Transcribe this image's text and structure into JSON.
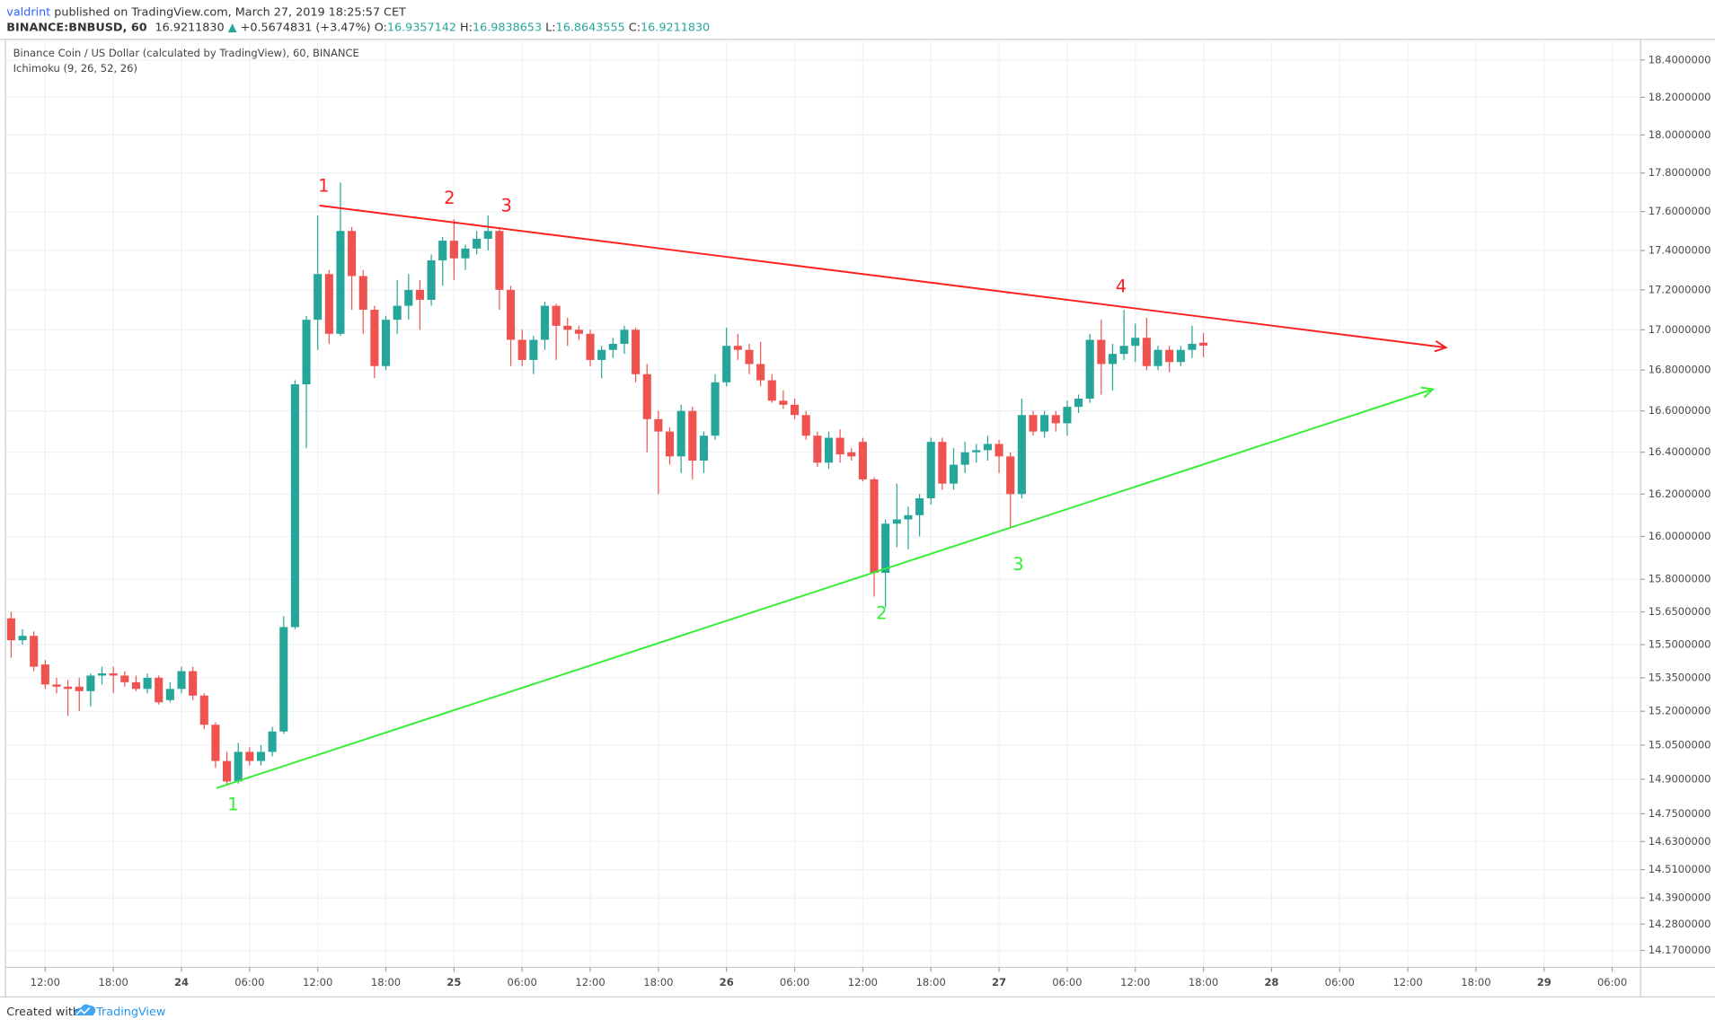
{
  "header": {
    "author": "valdrint",
    "published": "published on TradingView.com, March 27, 2019 18:25:57 CET",
    "symbol": "BINANCE:BNBUSD, 60",
    "last": "16.9211830",
    "arrow": "▲",
    "change": "+0.5674831 (+3.47%)",
    "ohlc": [
      {
        "label": "O:",
        "value": "16.9357142"
      },
      {
        "label": "H:",
        "value": "16.9838653"
      },
      {
        "label": "L:",
        "value": "16.8643555"
      },
      {
        "label": "C:",
        "value": "16.9211830"
      }
    ]
  },
  "footer": {
    "created": "Created with",
    "brand": "TradingView"
  },
  "chart_data": {
    "type": "candlestick",
    "title": "Binance Coin / US Dollar (calculated by TradingView), 60, BINANCE",
    "indicator": "Ichimoku (9, 26, 52, 26)",
    "up_color": "#26a69a",
    "down_color": "#ef5350",
    "log_scale": true,
    "grid": true,
    "ylim": [
      14.1,
      18.5
    ],
    "yticks": [
      {
        "value": 14.17,
        "label": "14.1700000"
      },
      {
        "value": 14.28,
        "label": "14.2800000"
      },
      {
        "value": 14.39,
        "label": "14.3900000"
      },
      {
        "value": 14.51,
        "label": "14.5100000"
      },
      {
        "value": 14.63,
        "label": "14.6300000"
      },
      {
        "value": 14.75,
        "label": "14.7500000"
      },
      {
        "value": 14.9,
        "label": "14.9000000"
      },
      {
        "value": 15.05,
        "label": "15.0500000"
      },
      {
        "value": 15.2,
        "label": "15.2000000"
      },
      {
        "value": 15.35,
        "label": "15.3500000"
      },
      {
        "value": 15.5,
        "label": "15.5000000"
      },
      {
        "value": 15.65,
        "label": "15.6500000"
      },
      {
        "value": 15.8,
        "label": "15.8000000"
      },
      {
        "value": 16.0,
        "label": "16.0000000"
      },
      {
        "value": 16.2,
        "label": "16.2000000"
      },
      {
        "value": 16.4,
        "label": "16.4000000"
      },
      {
        "value": 16.6,
        "label": "16.6000000"
      },
      {
        "value": 16.8,
        "label": "16.8000000"
      },
      {
        "value": 17.0,
        "label": "17.0000000"
      },
      {
        "value": 17.2,
        "label": "17.2000000"
      },
      {
        "value": 17.4,
        "label": "17.4000000"
      },
      {
        "value": 17.6,
        "label": "17.6000000"
      },
      {
        "value": 17.8,
        "label": "17.8000000"
      },
      {
        "value": 18.0,
        "label": "18.0000000"
      },
      {
        "value": 18.2,
        "label": "18.2000000"
      },
      {
        "value": 18.4,
        "label": "18.4000000"
      }
    ],
    "categories": [
      null,
      null,
      null,
      "12:00",
      null,
      null,
      null,
      null,
      null,
      "18:00",
      null,
      null,
      null,
      null,
      null,
      "24",
      null,
      null,
      null,
      null,
      null,
      "06:00",
      null,
      null,
      null,
      null,
      null,
      "12:00",
      null,
      null,
      null,
      null,
      null,
      "18:00",
      null,
      null,
      null,
      null,
      null,
      "25",
      null,
      null,
      null,
      null,
      null,
      "06:00",
      null,
      null,
      null,
      null,
      null,
      "12:00",
      null,
      null,
      null,
      null,
      null,
      "18:00",
      null,
      null,
      null,
      null,
      null,
      "26",
      null,
      null,
      null,
      null,
      null,
      "06:00",
      null,
      null,
      null,
      null,
      null,
      "12:00",
      null,
      null,
      null,
      null,
      null,
      "18:00",
      null,
      null,
      null,
      null,
      null,
      "27",
      null,
      null,
      null,
      null,
      null,
      "06:00",
      null,
      null,
      null,
      null,
      null,
      "12:00",
      null,
      null,
      null,
      null,
      null,
      "18:00",
      null,
      null,
      null,
      null,
      null,
      "28",
      null,
      null,
      null,
      null,
      null,
      "06:00",
      null,
      null,
      null,
      null,
      null,
      "12:00",
      null,
      null,
      null,
      null,
      null,
      "18:00",
      null,
      null,
      null,
      null,
      null,
      "29",
      null,
      null,
      null,
      null,
      null,
      "06:00",
      null,
      null
    ],
    "open": [
      15.62,
      15.52,
      15.54,
      15.41,
      15.32,
      15.31,
      15.31,
      15.29,
      15.36,
      15.37,
      15.36,
      15.33,
      15.3,
      15.35,
      15.25,
      15.3,
      15.38,
      15.27,
      15.14,
      14.98,
      14.89,
      15.02,
      14.98,
      15.02,
      15.11,
      15.58,
      16.73,
      17.05,
      17.28,
      16.98,
      17.5,
      17.27,
      17.1,
      16.82,
      17.05,
      17.12,
      17.2,
      17.15,
      17.35,
      17.45,
      17.36,
      17.41,
      17.46,
      17.5,
      17.2,
      16.95,
      16.85,
      16.95,
      17.12,
      17.02,
      17.0,
      16.98,
      16.85,
      16.9,
      16.93,
      17.0,
      16.78,
      16.56,
      16.5,
      16.38,
      16.6,
      16.36,
      16.48,
      16.74,
      16.92,
      16.9,
      16.83,
      16.75,
      16.65,
      16.63,
      16.58,
      16.48,
      16.35,
      16.47,
      16.4,
      16.45,
      16.27,
      15.83,
      16.06,
      16.08,
      16.1,
      16.18,
      16.45,
      16.25,
      16.34,
      16.4,
      16.41,
      16.44,
      16.38,
      16.2,
      16.58,
      16.5,
      16.58,
      16.54,
      16.62,
      16.66,
      16.95,
      16.83,
      16.88,
      16.92,
      16.96,
      16.82,
      16.9,
      16.84,
      16.9,
      16.9357142,
      null,
      null,
      null,
      null,
      null,
      null,
      null,
      null,
      null,
      null,
      null,
      null,
      null,
      null,
      null,
      null,
      null,
      null,
      null,
      null,
      null,
      null,
      null,
      null,
      null,
      null,
      null,
      null,
      null,
      null,
      null,
      null,
      null,
      null,
      null,
      null,
      null,
      null
    ],
    "high": [
      15.65,
      15.57,
      15.56,
      15.43,
      15.35,
      15.34,
      15.35,
      15.37,
      15.4,
      15.4,
      15.38,
      15.36,
      15.37,
      15.36,
      15.33,
      15.4,
      15.4,
      15.28,
      15.15,
      15.02,
      15.06,
      15.04,
      15.05,
      15.13,
      15.63,
      16.75,
      17.07,
      17.58,
      17.3,
      17.75,
      17.52,
      17.3,
      17.12,
      17.07,
      17.25,
      17.28,
      17.25,
      17.38,
      17.47,
      17.56,
      17.43,
      17.5,
      17.58,
      17.51,
      17.22,
      17.0,
      16.97,
      17.14,
      17.13,
      17.06,
      17.02,
      17.0,
      16.92,
      16.96,
      17.02,
      17.01,
      16.83,
      16.6,
      16.52,
      16.63,
      16.62,
      16.5,
      16.78,
      17.01,
      16.98,
      16.93,
      16.94,
      16.78,
      16.7,
      16.66,
      16.6,
      16.5,
      16.5,
      16.51,
      16.42,
      16.47,
      16.28,
      16.08,
      16.25,
      16.14,
      16.2,
      16.47,
      16.47,
      16.42,
      16.45,
      16.44,
      16.48,
      16.46,
      16.4,
      16.66,
      16.6,
      16.6,
      16.6,
      16.65,
      16.68,
      16.98,
      17.05,
      16.93,
      17.1,
      17.03,
      17.06,
      16.92,
      16.92,
      16.92,
      17.02,
      16.9838653,
      null,
      null,
      null,
      null,
      null,
      null,
      null,
      null,
      null,
      null,
      null,
      null,
      null,
      null,
      null,
      null,
      null,
      null,
      null,
      null,
      null,
      null,
      null,
      null,
      null,
      null,
      null,
      null,
      null,
      null,
      null,
      null,
      null,
      null,
      null,
      null,
      null,
      null
    ],
    "low": [
      15.44,
      15.5,
      15.38,
      15.3,
      15.28,
      15.18,
      15.2,
      15.22,
      15.32,
      15.28,
      15.31,
      15.29,
      15.28,
      15.23,
      15.24,
      15.28,
      15.25,
      15.12,
      14.95,
      14.88,
      14.88,
      14.96,
      14.96,
      15.0,
      15.1,
      15.57,
      16.42,
      16.9,
      16.93,
      16.97,
      17.1,
      16.98,
      16.76,
      16.8,
      16.98,
      17.05,
      17.0,
      17.12,
      17.22,
      17.25,
      17.3,
      17.38,
      17.4,
      17.1,
      16.82,
      16.82,
      16.78,
      16.9,
      16.85,
      16.92,
      16.95,
      16.82,
      16.76,
      16.86,
      16.88,
      16.74,
      16.4,
      16.2,
      16.34,
      16.3,
      16.27,
      16.3,
      16.46,
      16.72,
      16.85,
      16.78,
      16.72,
      16.64,
      16.61,
      16.56,
      16.46,
      16.33,
      16.32,
      16.35,
      16.36,
      16.26,
      15.72,
      15.67,
      15.95,
      15.94,
      16.0,
      16.15,
      16.22,
      16.22,
      16.3,
      16.35,
      16.36,
      16.3,
      16.04,
      16.18,
      16.48,
      16.47,
      16.5,
      16.48,
      16.59,
      16.64,
      16.68,
      16.7,
      16.85,
      16.84,
      16.8,
      16.8,
      16.79,
      16.82,
      16.86,
      16.8643555,
      null,
      null,
      null,
      null,
      null,
      null,
      null,
      null,
      null,
      null,
      null,
      null,
      null,
      null,
      null,
      null,
      null,
      null,
      null,
      null,
      null,
      null,
      null,
      null,
      null,
      null,
      null,
      null,
      null,
      null,
      null,
      null,
      null,
      null,
      null,
      null,
      null,
      null
    ],
    "close": [
      15.52,
      15.54,
      15.4,
      15.32,
      15.31,
      15.3,
      15.29,
      15.36,
      15.37,
      15.36,
      15.33,
      15.3,
      15.35,
      15.24,
      15.3,
      15.38,
      15.27,
      15.14,
      14.98,
      14.89,
      15.02,
      14.98,
      15.02,
      15.11,
      15.58,
      16.73,
      17.05,
      17.28,
      16.98,
      17.5,
      17.27,
      17.1,
      16.82,
      17.05,
      17.12,
      17.2,
      17.15,
      17.35,
      17.45,
      17.36,
      17.41,
      17.46,
      17.5,
      17.2,
      16.95,
      16.85,
      16.95,
      17.12,
      17.02,
      17.0,
      16.98,
      16.85,
      16.9,
      16.93,
      17.0,
      16.78,
      16.56,
      16.5,
      16.38,
      16.6,
      16.36,
      16.48,
      16.74,
      16.92,
      16.9,
      16.83,
      16.75,
      16.65,
      16.63,
      16.58,
      16.48,
      16.35,
      16.47,
      16.39,
      16.38,
      16.27,
      15.83,
      16.06,
      16.08,
      16.1,
      16.18,
      16.45,
      16.25,
      16.34,
      16.4,
      16.41,
      16.44,
      16.38,
      16.2,
      16.58,
      16.5,
      16.58,
      16.54,
      16.62,
      16.66,
      16.95,
      16.83,
      16.88,
      16.92,
      16.96,
      16.82,
      16.9,
      16.84,
      16.9,
      16.93,
      16.921183,
      null,
      null,
      null,
      null,
      null,
      null,
      null,
      null,
      null,
      null,
      null,
      null,
      null,
      null,
      null,
      null,
      null,
      null,
      null,
      null,
      null,
      null,
      null,
      null,
      null,
      null,
      null,
      null,
      null,
      null,
      null,
      null,
      null,
      null,
      null,
      null,
      null,
      null
    ],
    "trendlines": [
      {
        "color": "#ff1e1e",
        "labels": [
          "1",
          "2",
          "3",
          "4"
        ]
      },
      {
        "color": "#33ee33",
        "labels": [
          "1",
          "2",
          "3"
        ]
      }
    ]
  }
}
